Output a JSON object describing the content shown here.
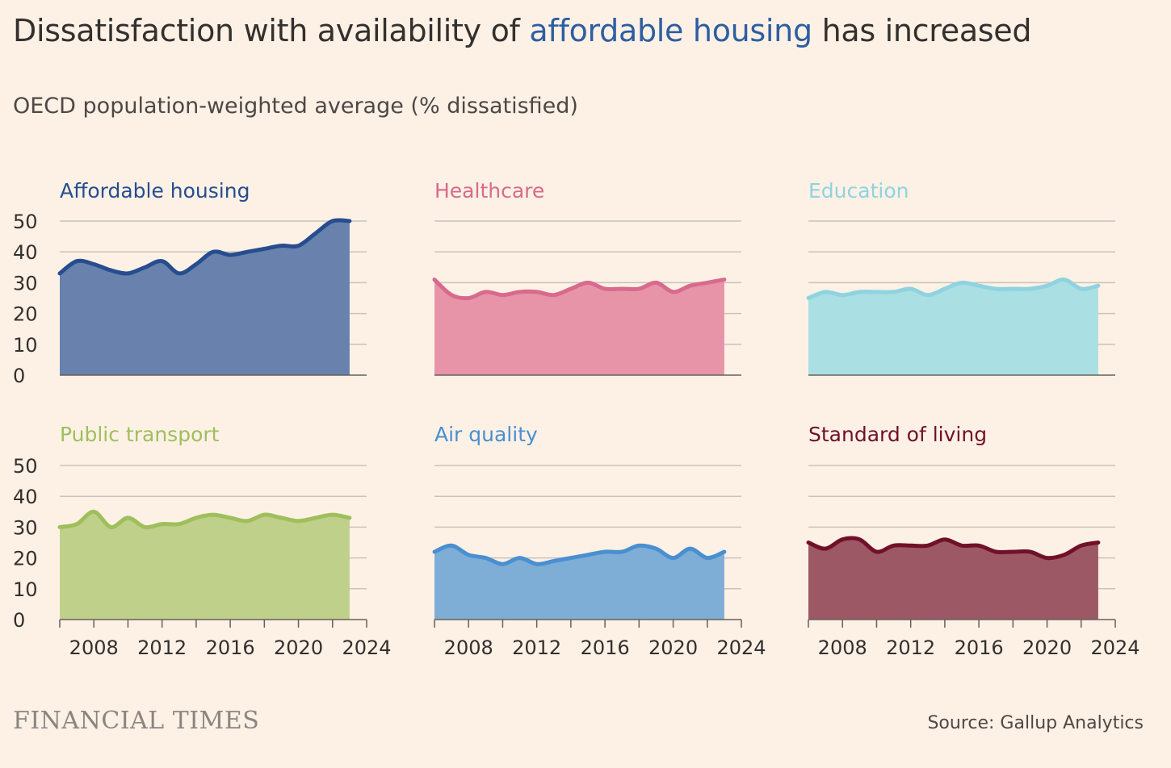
{
  "title": {
    "before": "Dissatisfaction with availability of ",
    "highlight": "affordable housing",
    "after": " has increased"
  },
  "subtitle": "OECD population-weighted average (% dissatisfied)",
  "source": "Source: Gallup Analytics",
  "logo": "FINANCIAL TIMES",
  "colors": {
    "background": "#fdf1e6",
    "gridline": "#c9c2bb",
    "axis": "#66605c",
    "highlight": "#2e5ea0"
  },
  "chart_data": [
    {
      "type": "area",
      "title": "Affordable housing",
      "color": "#274d8f",
      "fill": "#6882ad",
      "x": [
        2006,
        2007,
        2008,
        2009,
        2010,
        2011,
        2012,
        2013,
        2014,
        2015,
        2016,
        2017,
        2018,
        2019,
        2020,
        2021,
        2022,
        2023
      ],
      "values": [
        33,
        37,
        36,
        34,
        33,
        35,
        37,
        33,
        36,
        40,
        39,
        40,
        41,
        42,
        42,
        46,
        50,
        50
      ],
      "ylim": [
        0,
        50
      ],
      "yticks": [
        0,
        10,
        20,
        30,
        40,
        50
      ],
      "xticks": [
        2008,
        2012,
        2016,
        2020,
        2024
      ],
      "xlim": [
        2006,
        2024
      ],
      "grid": true
    },
    {
      "type": "area",
      "title": "Healthcare",
      "color": "#d86a8d",
      "fill": "#e794a9",
      "x": [
        2006,
        2007,
        2008,
        2009,
        2010,
        2011,
        2012,
        2013,
        2014,
        2015,
        2016,
        2017,
        2018,
        2019,
        2020,
        2021,
        2022,
        2023
      ],
      "values": [
        31,
        26,
        25,
        27,
        26,
        27,
        27,
        26,
        28,
        30,
        28,
        28,
        28,
        30,
        27,
        29,
        30,
        31
      ],
      "ylim": [
        0,
        50
      ],
      "yticks": [
        0,
        10,
        20,
        30,
        40,
        50
      ],
      "xticks": [
        2008,
        2012,
        2016,
        2020,
        2024
      ],
      "xlim": [
        2006,
        2024
      ],
      "grid": true
    },
    {
      "type": "area",
      "title": "Education",
      "color": "#8fd3e0",
      "fill": "#aadfe3",
      "x": [
        2006,
        2007,
        2008,
        2009,
        2010,
        2011,
        2012,
        2013,
        2014,
        2015,
        2016,
        2017,
        2018,
        2019,
        2020,
        2021,
        2022,
        2023
      ],
      "values": [
        25,
        27,
        26,
        27,
        27,
        27,
        28,
        26,
        28,
        30,
        29,
        28,
        28,
        28,
        29,
        31,
        28,
        29
      ],
      "ylim": [
        0,
        50
      ],
      "yticks": [
        0,
        10,
        20,
        30,
        40,
        50
      ],
      "xticks": [
        2008,
        2012,
        2016,
        2020,
        2024
      ],
      "xlim": [
        2006,
        2024
      ],
      "grid": true
    },
    {
      "type": "area",
      "title": "Public transport",
      "color": "#9fbf5c",
      "fill": "#bfd08a",
      "x": [
        2006,
        2007,
        2008,
        2009,
        2010,
        2011,
        2012,
        2013,
        2014,
        2015,
        2016,
        2017,
        2018,
        2019,
        2020,
        2021,
        2022,
        2023
      ],
      "values": [
        30,
        31,
        35,
        30,
        33,
        30,
        31,
        31,
        33,
        34,
        33,
        32,
        34,
        33,
        32,
        33,
        34,
        33
      ],
      "ylim": [
        0,
        50
      ],
      "yticks": [
        0,
        10,
        20,
        30,
        40,
        50
      ],
      "xticks": [
        2008,
        2012,
        2016,
        2020,
        2024
      ],
      "xlim": [
        2006,
        2024
      ],
      "grid": true
    },
    {
      "type": "area",
      "title": "Air quality",
      "color": "#4a8fd0",
      "fill": "#7eadd5",
      "x": [
        2006,
        2007,
        2008,
        2009,
        2010,
        2011,
        2012,
        2013,
        2014,
        2015,
        2016,
        2017,
        2018,
        2019,
        2020,
        2021,
        2022,
        2023
      ],
      "values": [
        22,
        24,
        21,
        20,
        18,
        20,
        18,
        19,
        20,
        21,
        22,
        22,
        24,
        23,
        20,
        23,
        20,
        22
      ],
      "ylim": [
        0,
        50
      ],
      "yticks": [
        0,
        10,
        20,
        30,
        40,
        50
      ],
      "xticks": [
        2008,
        2012,
        2016,
        2020,
        2024
      ],
      "xlim": [
        2006,
        2024
      ],
      "grid": true
    },
    {
      "type": "area",
      "title": "Standard of living",
      "color": "#70112a",
      "fill": "#9d5866",
      "x": [
        2006,
        2007,
        2008,
        2009,
        2010,
        2011,
        2012,
        2013,
        2014,
        2015,
        2016,
        2017,
        2018,
        2019,
        2020,
        2021,
        2022,
        2023
      ],
      "values": [
        25,
        23,
        26,
        26,
        22,
        24,
        24,
        24,
        26,
        24,
        24,
        22,
        22,
        22,
        20,
        21,
        24,
        25
      ],
      "ylim": [
        0,
        50
      ],
      "yticks": [
        0,
        10,
        20,
        30,
        40,
        50
      ],
      "xticks": [
        2008,
        2012,
        2016,
        2020,
        2024
      ],
      "xlim": [
        2006,
        2024
      ],
      "grid": true
    }
  ]
}
